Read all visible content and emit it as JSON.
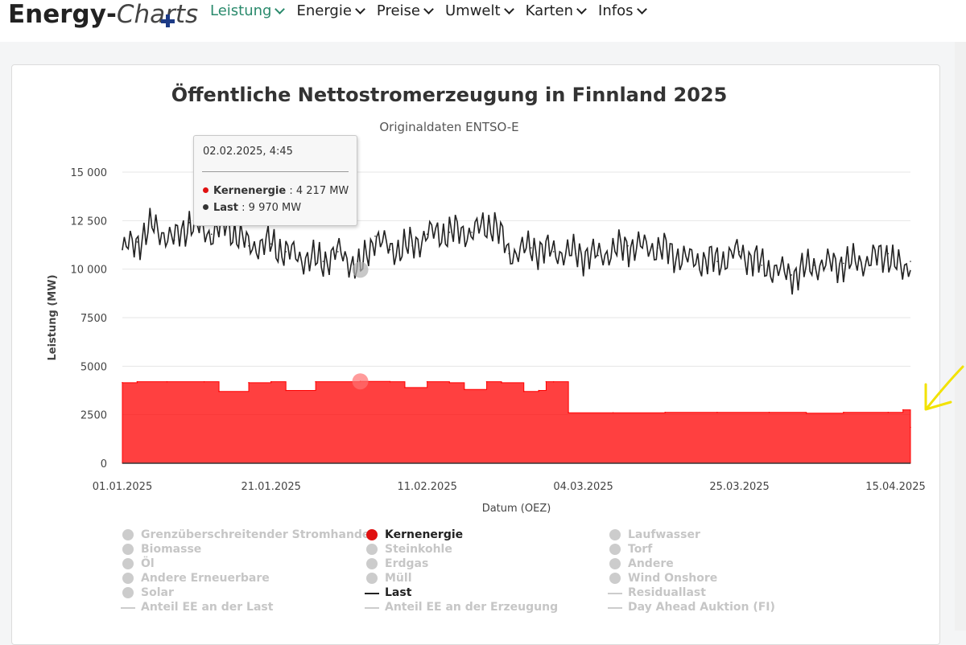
{
  "brand": {
    "part1": "Energy-",
    "part2": "Charts"
  },
  "nav": [
    {
      "label": "Leistung",
      "active": true
    },
    {
      "label": "Energie",
      "active": false
    },
    {
      "label": "Preise",
      "active": false
    },
    {
      "label": "Umwelt",
      "active": false
    },
    {
      "label": "Karten",
      "active": false
    },
    {
      "label": "Infos",
      "active": false
    }
  ],
  "colors": {
    "accent": "#2a8a6c",
    "nuclear": "#ff0000",
    "load": "#222222",
    "annotation_arrow": "#f2e200"
  },
  "tooltip": {
    "date": "02.02.2025, 4:45",
    "rows": [
      {
        "name": "Kernenergie",
        "value": ": 4 217 MW",
        "color": "#e01010"
      },
      {
        "name": "Last",
        "value": ": 9 970 MW",
        "color": "#333333"
      }
    ]
  },
  "chart_data": {
    "type": "area",
    "title": "Öffentliche Nettostromerzeugung in Finnland 2025",
    "subtitle": "Originaldaten ENTSO-E",
    "xlabel": "Datum (OEZ)",
    "ylabel": "Leistung (MW)",
    "ylim": [
      0,
      15000
    ],
    "yticks": [
      "0",
      "2500",
      "5000",
      "7500",
      "10 000",
      "12 500",
      "15 000"
    ],
    "xticks": [
      "01.01.2025",
      "21.01.2025",
      "11.02.2025",
      "04.03.2025",
      "25.03.2025",
      "15.04.2025"
    ],
    "grid": true,
    "legend_placement": "bottom",
    "series": [
      {
        "name": "Kernenergie",
        "kind": "area",
        "color": "#ff0000",
        "x": [
          "01.01.2025",
          "03.01.2025",
          "07.01.2025",
          "12.01.2025",
          "14.01.2025",
          "18.01.2025",
          "21.01.2025",
          "23.01.2025",
          "27.01.2025",
          "02.02.2025",
          "06.02.2025",
          "08.02.2025",
          "11.02.2025",
          "14.02.2025",
          "16.02.2025",
          "19.02.2025",
          "21.02.2025",
          "24.02.2025",
          "26.02.2025",
          "27.02.2025",
          "28.02.2025",
          "02.03.2025",
          "08.03.2025",
          "15.03.2025",
          "22.03.2025",
          "29.03.2025",
          "03.04.2025",
          "08.04.2025",
          "14.04.2025",
          "16.04.2025",
          "17.04.2025"
        ],
        "y": [
          4150,
          4200,
          4200,
          4200,
          3700,
          4150,
          4200,
          3750,
          4200,
          4217,
          4200,
          3900,
          4200,
          4150,
          3800,
          4200,
          4150,
          3700,
          3750,
          4200,
          4200,
          2600,
          2600,
          2620,
          2620,
          2620,
          2580,
          2620,
          2620,
          2750,
          1850
        ]
      },
      {
        "name": "Last",
        "kind": "line",
        "color": "#222222",
        "x": [
          "01.01.2025",
          "03.01.2025",
          "05.01.2025",
          "08.01.2025",
          "10.01.2025",
          "13.01.2025",
          "15.01.2025",
          "18.01.2025",
          "21.01.2025",
          "23.01.2025",
          "25.01.2025",
          "28.01.2025",
          "30.01.2025",
          "02.02.2025",
          "04.02.2025",
          "06.02.2025",
          "09.02.2025",
          "11.02.2025",
          "14.02.2025",
          "17.02.2025",
          "20.02.2025",
          "22.02.2025",
          "25.02.2025",
          "28.02.2025",
          "03.03.2025",
          "06.03.2025",
          "10.03.2025",
          "14.03.2025",
          "18.03.2025",
          "22.03.2025",
          "25.03.2025",
          "28.03.2025",
          "01.04.2025",
          "04.04.2025",
          "08.04.2025",
          "11.04.2025",
          "14.04.2025",
          "16.04.2025",
          "17.04.2025"
        ],
        "y": [
          11000,
          11400,
          12200,
          11500,
          12400,
          11800,
          12300,
          11200,
          11300,
          10900,
          10600,
          10400,
          10900,
          9970,
          11700,
          11000,
          11200,
          11800,
          11900,
          11900,
          12400,
          10800,
          11100,
          10900,
          10800,
          10700,
          11200,
          11100,
          10500,
          10400,
          10900,
          10200,
          9700,
          10200,
          10300,
          10400,
          10800,
          9800,
          10400
        ]
      }
    ],
    "hover_points": [
      {
        "series": "Last",
        "x": "02.02.2025",
        "y": 9970
      },
      {
        "series": "Kernenergie",
        "x": "02.02.2025",
        "y": 4217
      }
    ]
  },
  "legend": {
    "items": [
      {
        "label": "Grenzüberschreitender Stromhandel",
        "type": "dot",
        "on": false,
        "color": "#cccccc"
      },
      {
        "label": "Biomasse",
        "type": "dot",
        "on": false,
        "color": "#cccccc"
      },
      {
        "label": "Öl",
        "type": "dot",
        "on": false,
        "color": "#cccccc"
      },
      {
        "label": "Andere Erneuerbare",
        "type": "dot",
        "on": false,
        "color": "#cccccc"
      },
      {
        "label": "Solar",
        "type": "dot",
        "on": false,
        "color": "#cccccc"
      },
      {
        "label": "Anteil EE an der Last",
        "type": "line",
        "on": false,
        "color": "#cccccc"
      },
      {
        "label": "Kernenergie",
        "type": "dot",
        "on": true,
        "color": "#e01010"
      },
      {
        "label": "Steinkohle",
        "type": "dot",
        "on": false,
        "color": "#cccccc"
      },
      {
        "label": "Erdgas",
        "type": "dot",
        "on": false,
        "color": "#cccccc"
      },
      {
        "label": "Müll",
        "type": "dot",
        "on": false,
        "color": "#cccccc"
      },
      {
        "label": "Last",
        "type": "line",
        "on": true,
        "color": "#222222"
      },
      {
        "label": "Anteil EE an der Erzeugung",
        "type": "line",
        "on": false,
        "color": "#cccccc"
      },
      {
        "label": "Laufwasser",
        "type": "dot",
        "on": false,
        "color": "#cccccc"
      },
      {
        "label": "Torf",
        "type": "dot",
        "on": false,
        "color": "#cccccc"
      },
      {
        "label": "Andere",
        "type": "dot",
        "on": false,
        "color": "#cccccc"
      },
      {
        "label": "Wind Onshore",
        "type": "dot",
        "on": false,
        "color": "#cccccc"
      },
      {
        "label": "Residuallast",
        "type": "line",
        "on": false,
        "color": "#cccccc"
      },
      {
        "label": "Day Ahead Auktion (FI)",
        "type": "line",
        "on": false,
        "color": "#cccccc"
      }
    ]
  }
}
